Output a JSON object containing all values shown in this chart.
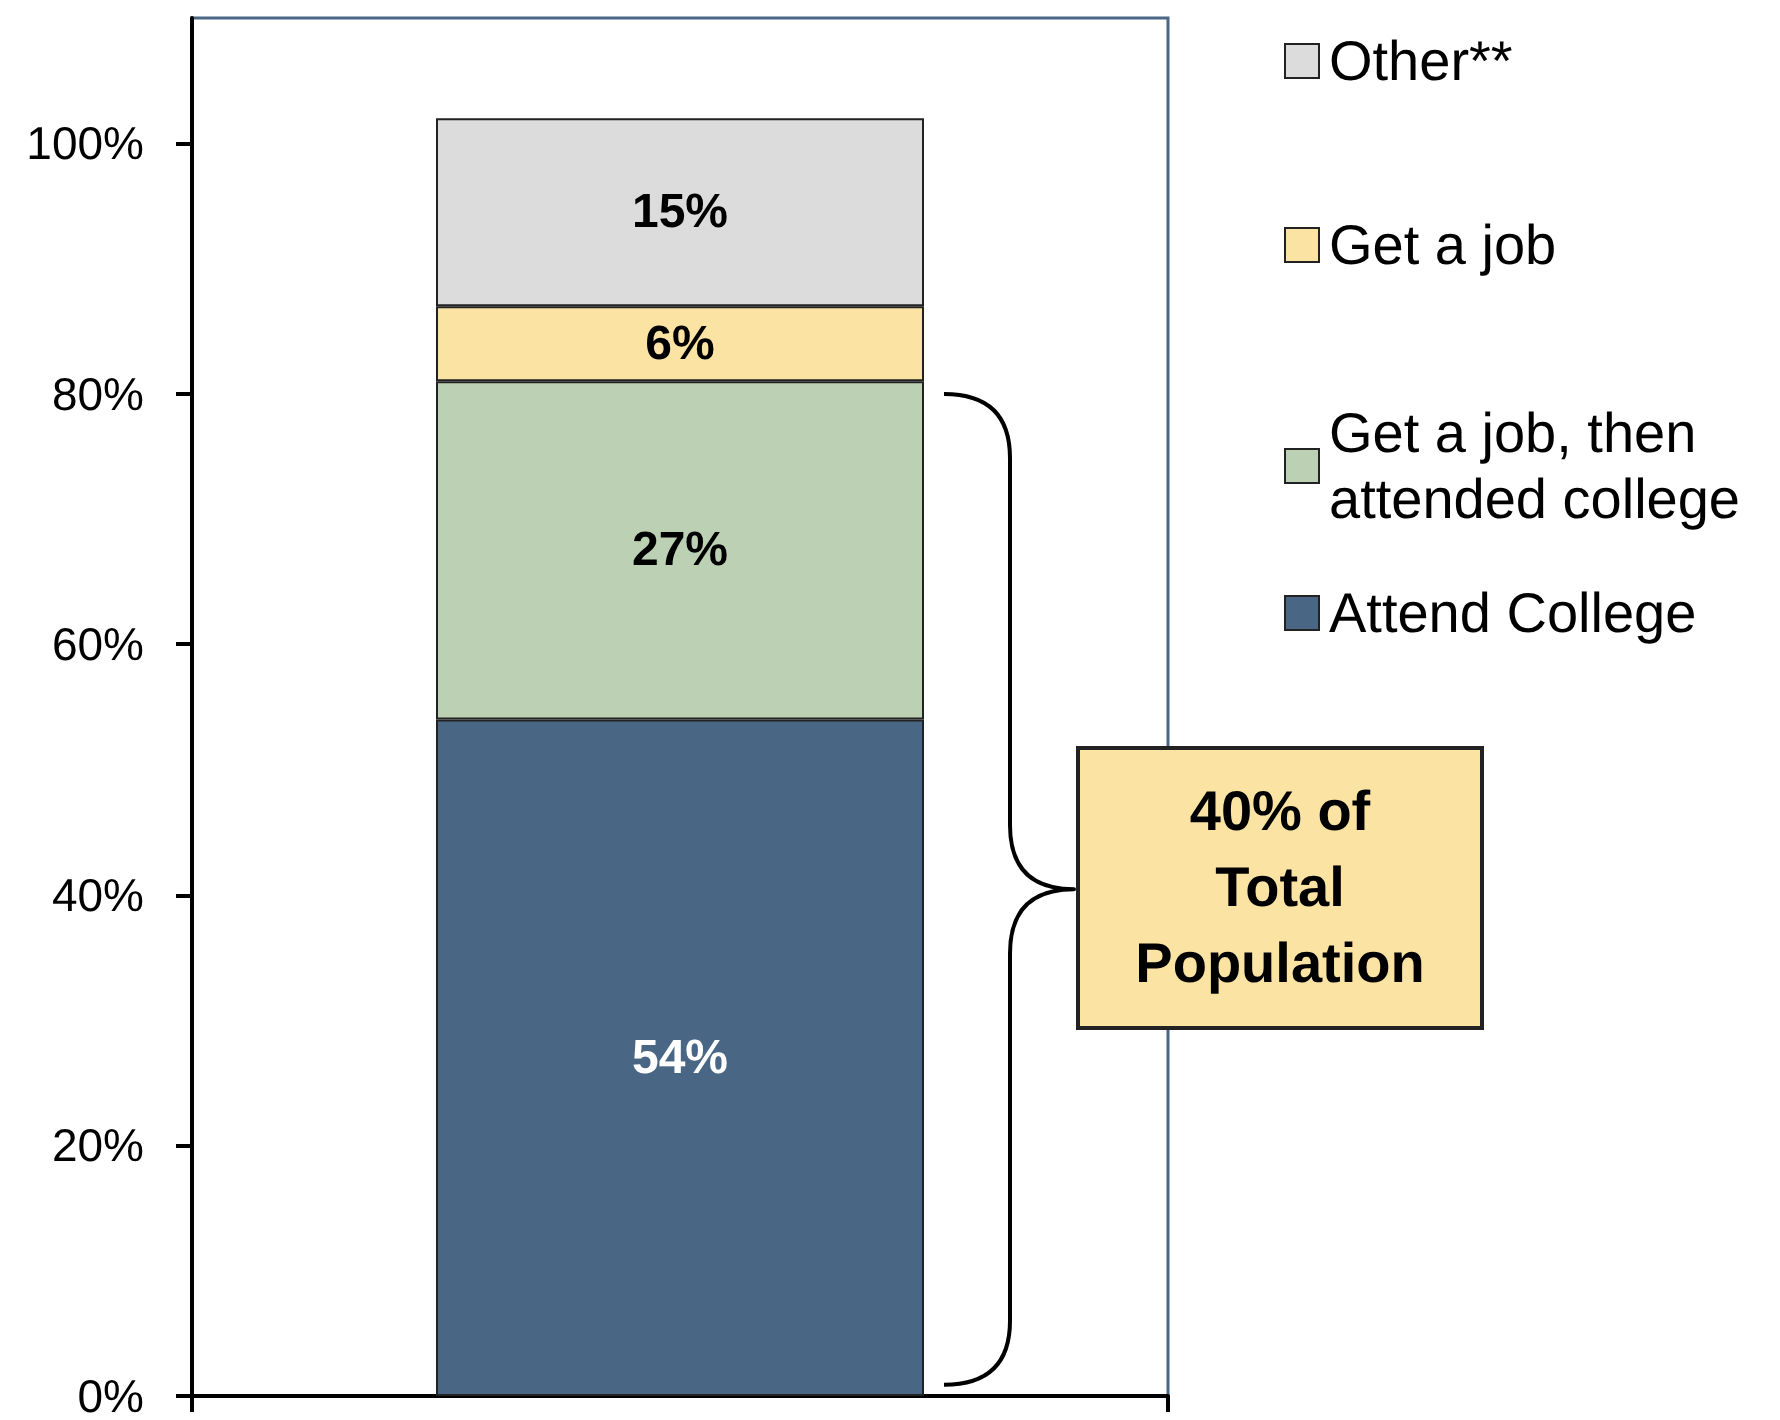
{
  "chart_data": {
    "type": "bar",
    "stacked": true,
    "categories": [
      null
    ],
    "series": [
      {
        "name": "Attend College",
        "color": "#496785",
        "values": [
          54
        ],
        "value_labels": [
          "54%"
        ]
      },
      {
        "name": "Get a job, then attended college",
        "color": "#bcd1b4",
        "values": [
          27
        ],
        "value_labels": [
          "27%"
        ]
      },
      {
        "name": "Get a job",
        "color": "#fae3a3",
        "values": [
          6
        ],
        "value_labels": [
          "6%"
        ]
      },
      {
        "name": "Other**",
        "color": "#dcdcdc",
        "values": [
          15
        ],
        "value_labels": [
          "15%"
        ]
      }
    ],
    "ylim": [
      0,
      110
    ],
    "yticks": [
      {
        "value": 0,
        "label": "0%"
      },
      {
        "value": 20,
        "label": "20%"
      },
      {
        "value": 40,
        "label": "40%"
      },
      {
        "value": 60,
        "label": "60%"
      },
      {
        "value": 80,
        "label": "80%"
      },
      {
        "value": 100,
        "label": "100%"
      }
    ],
    "legend": "top right",
    "annotations": [
      "40% of Total Population"
    ]
  }
}
